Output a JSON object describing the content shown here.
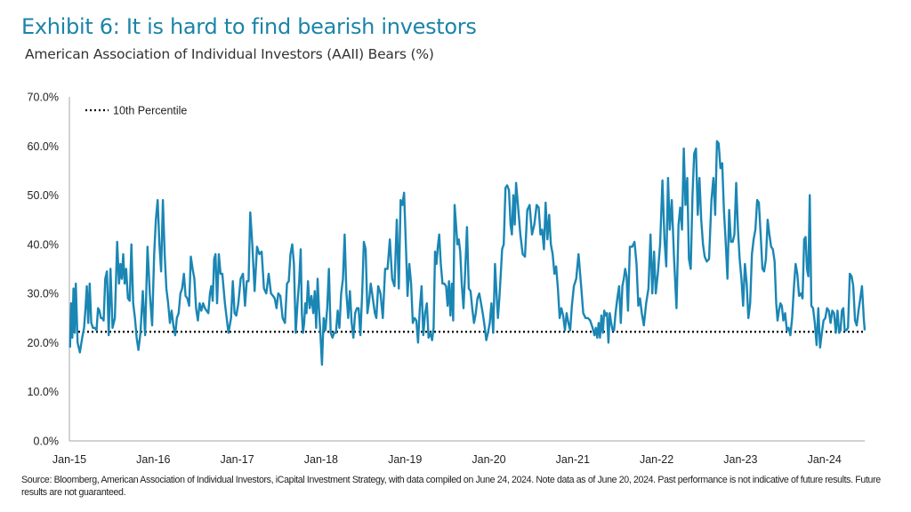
{
  "title": "Exhibit 6: It is hard to find bearish investors",
  "subtitle": "American Association of Individual Investors (AAII) Bears (%)",
  "footnote": "Source: Bloomberg, American Association of Individual Investors, iCapital Investment Strategy, with data compiled on June 24, 2024. Note data as of June 20, 2024. Past performance is not indicative of future results. Future results are not guaranteed.",
  "colors": {
    "title": "#1b84a8",
    "series": "#1a86b4",
    "percentile_line": "#000000"
  },
  "chart_data": {
    "type": "line",
    "title": "",
    "xlabel": "",
    "ylabel": "",
    "ylim": [
      0,
      70
    ],
    "y_ticks": [
      "0.0%",
      "10.0%",
      "20.0%",
      "30.0%",
      "40.0%",
      "50.0%",
      "60.0%",
      "70.0%"
    ],
    "x_ticks": [
      "Jan-15",
      "Jan-16",
      "Jan-17",
      "Jan-18",
      "Jan-19",
      "Jan-20",
      "Jan-21",
      "Jan-22",
      "Jan-23",
      "Jan-24"
    ],
    "x_range": [
      "2015-01",
      "2024-06"
    ],
    "grid": false,
    "legend_position": "top-left",
    "reference_line": {
      "name": "10th Percentile",
      "value": 22.2,
      "style": "dotted"
    },
    "series": [
      {
        "frequency": "weekly",
        "values_by_month": {
          "2015-01": [
            19,
            28,
            21,
            31,
            22,
            32
          ],
          "2015-02": [
            20,
            18,
            21
          ],
          "2015-03": [
            23,
            27,
            31.5,
            24,
            32
          ],
          "2015-04": [
            24,
            23,
            23,
            22.5
          ],
          "2015-05": [
            27,
            26.5,
            25,
            25,
            24.5
          ],
          "2015-06": [
            33,
            34.5,
            21.5,
            35
          ],
          "2015-07": [
            23,
            25,
            40.5
          ],
          "2015-08": [
            32,
            36,
            33,
            38,
            32
          ],
          "2015-09": [
            35,
            29,
            28.5,
            40
          ],
          "2015-10": [
            28,
            25,
            21,
            18.5
          ],
          "2015-11": [
            22,
            30.5,
            21.5
          ],
          "2015-12": [
            39.5,
            30,
            23.5
          ],
          "2016-01": [
            38,
            45,
            49,
            40
          ],
          "2016-02": [
            34.5,
            49,
            38,
            31
          ],
          "2016-03": [
            28,
            24,
            26.5,
            23.5
          ],
          "2016-04": [
            21.5,
            25,
            26,
            30
          ],
          "2016-05": [
            31,
            34,
            29.5,
            29
          ],
          "2016-06": [
            27.5,
            37.5,
            35,
            33
          ],
          "2016-07": [
            27,
            24.5,
            28,
            26.5
          ],
          "2016-08": [
            28,
            27,
            26.5,
            26
          ],
          "2016-09": [
            30,
            31.5,
            28.5,
            37,
            38
          ],
          "2016-10": [
            28,
            38,
            34,
            34
          ],
          "2016-11": [
            28,
            22
          ],
          "2016-12": [
            25,
            32.5,
            26,
            25.5
          ],
          "2017-01": [
            28,
            33,
            34
          ],
          "2017-02": [
            27.5,
            32.5,
            32.5,
            46.5
          ],
          "2017-03": [
            40,
            30.5,
            39.5
          ],
          "2017-04": [
            38,
            38.5,
            31
          ],
          "2017-05": [
            30,
            34,
            30
          ],
          "2017-06": [
            29.5,
            29,
            27,
            30
          ],
          "2017-07": [
            29.5,
            25,
            24
          ],
          "2017-08": [
            32,
            32.5,
            38,
            40
          ],
          "2017-09": [
            36,
            22,
            28,
            32.5
          ],
          "2017-10": [
            39,
            26,
            22,
            24,
            28,
            26
          ],
          "2017-11": [
            32.5,
            27,
            29.5,
            26
          ],
          "2017-12": [
            30.5,
            23,
            33,
            27,
            22
          ],
          "2018-01": [
            15.5,
            25,
            22.5,
            27
          ],
          "2018-02": [
            35,
            22,
            21,
            22
          ],
          "2018-03": [
            22,
            26.5,
            23,
            30
          ],
          "2018-04": [
            33,
            42,
            30,
            25
          ],
          "2018-05": [
            30.5,
            24,
            21,
            26
          ],
          "2018-06": [
            27,
            27,
            21.5,
            30
          ],
          "2018-07": [
            40.5,
            39,
            26,
            28.5
          ],
          "2018-08": [
            32,
            30,
            28,
            26,
            25
          ],
          "2018-09": [
            31.5,
            30,
            25
          ],
          "2018-10": [
            35,
            35,
            41
          ],
          "2018-11": [
            33,
            31.5,
            45
          ],
          "2018-12": [
            31,
            49,
            48,
            50.5
          ],
          "2019-01": [
            40,
            29.5,
            36,
            32
          ],
          "2019-02": [
            24,
            25,
            24.5,
            20
          ],
          "2019-03": [
            27,
            31.5,
            21.5,
            26
          ],
          "2019-04": [
            28,
            21,
            22,
            20.5
          ],
          "2019-05": [
            23,
            38.5,
            36,
            39.5,
            42
          ],
          "2019-06": [
            36,
            32,
            32,
            31.5
          ],
          "2019-07": [
            27.5,
            32.5,
            25.5,
            32,
            24.5
          ],
          "2019-08": [
            48,
            44,
            40,
            41,
            38.5
          ],
          "2019-09": [
            32,
            27,
            35,
            43.5
          ],
          "2019-10": [
            31,
            30.5,
            27,
            24
          ],
          "2019-11": [
            26,
            29,
            30,
            28
          ],
          "2019-12": [
            26,
            23.5,
            20.5,
            22
          ],
          "2020-01": [
            24,
            28,
            22,
            36
          ],
          "2020-02": [
            30,
            25,
            29,
            34,
            39
          ],
          "2020-03": [
            40,
            51.5,
            52,
            51
          ],
          "2020-04": [
            44,
            42,
            50,
            44,
            52.5
          ],
          "2020-05": [
            48,
            42,
            38
          ],
          "2020-06": [
            37.5,
            47,
            48
          ],
          "2020-07": [
            42,
            44,
            48
          ],
          "2020-08": [
            47.5,
            42,
            43,
            39
          ],
          "2020-09": [
            48.5,
            41,
            46,
            40
          ],
          "2020-10": [
            38,
            34,
            35.5,
            31
          ],
          "2020-11": [
            25,
            27,
            25.5,
            22.5
          ],
          "2020-12": [
            26,
            24,
            22.5,
            27.5
          ],
          "2021-01": [
            31.5,
            33,
            38
          ],
          "2021-02": [
            32,
            26,
            25
          ],
          "2021-03": [
            25,
            24.5,
            23
          ],
          "2021-04": [
            21.5,
            23,
            21,
            24,
            21
          ],
          "2021-05": [
            25.5,
            22,
            26.5,
            25.5,
            26
          ],
          "2021-06": [
            20,
            26,
            24,
            22.5,
            22.5
          ],
          "2021-07": [
            26,
            29,
            31.5,
            24
          ],
          "2021-08": [
            31.5,
            33,
            35,
            33.5,
            26.5
          ],
          "2021-09": [
            39.5,
            39.5,
            40.5
          ],
          "2021-10": [
            36,
            27.5,
            29,
            26
          ],
          "2021-11": [
            23.5,
            28,
            31
          ],
          "2021-12": [
            42,
            30,
            38.5,
            30
          ],
          "2022-01": [
            34,
            40,
            53
          ],
          "2022-02": [
            41,
            35.5,
            53.5,
            43
          ],
          "2022-03": [
            49,
            37,
            27
          ],
          "2022-04": [
            44,
            47.5,
            43,
            59.5
          ],
          "2022-05": [
            48,
            53.5,
            37,
            35
          ],
          "2022-06": [
            50,
            58.5,
            59.5,
            46
          ],
          "2022-07": [
            53.5,
            45,
            40,
            37.5
          ],
          "2022-08": [
            36.5,
            37,
            49
          ],
          "2022-09": [
            53.5,
            46,
            61,
            60.5
          ],
          "2022-10": [
            55.5,
            56.5,
            47,
            40.5
          ],
          "2022-11": [
            33,
            47,
            40.5,
            40.5
          ],
          "2022-12": [
            42,
            52.5,
            43,
            37
          ],
          "2023-01": [
            33,
            27.5,
            36,
            32
          ],
          "2023-02": [
            25,
            28,
            38,
            41
          ],
          "2023-03": [
            43,
            49,
            48.5,
            42
          ],
          "2023-04": [
            35,
            34.5,
            37,
            45
          ],
          "2023-05": [
            42,
            39.5,
            39,
            36.5
          ],
          "2023-06": [
            28,
            24.5,
            26.5,
            28,
            27.5
          ],
          "2023-07": [
            24.5,
            26,
            22.5,
            23
          ],
          "2023-08": [
            21.5,
            25,
            31,
            36
          ],
          "2023-09": [
            34,
            29.5,
            30,
            29
          ],
          "2023-10": [
            41,
            41.5,
            35,
            33.5,
            50
          ],
          "2023-11": [
            27.5,
            27,
            24,
            19.5
          ],
          "2023-12": [
            27,
            19,
            22,
            24.5
          ],
          "2024-01": [
            25,
            27,
            26.5,
            24
          ],
          "2024-02": [
            26.5,
            26,
            22,
            26.5
          ],
          "2024-03": [
            22,
            22.5,
            26.5,
            27,
            22.5
          ],
          "2024-04": [
            22.5,
            23,
            34,
            33.5
          ],
          "2024-05": [
            31.5,
            24.5,
            23.5,
            26.5
          ],
          "2024-06": [
            29,
            31.5,
            25,
            22.5
          ]
        }
      }
    ]
  }
}
